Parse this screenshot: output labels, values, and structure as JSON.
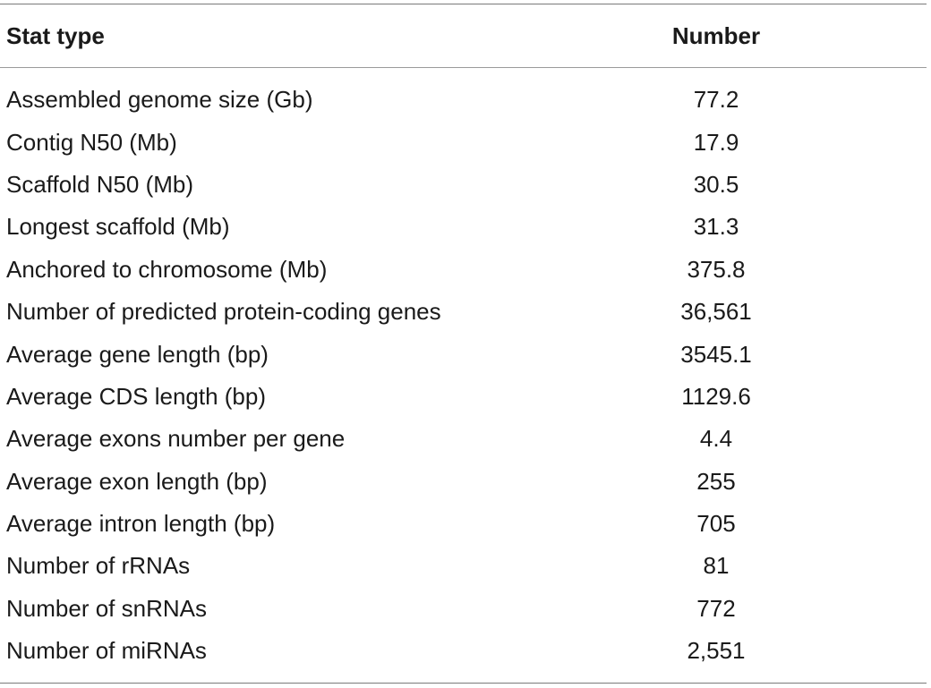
{
  "table": {
    "headers": {
      "stat_type": "Stat type",
      "number": "Number"
    },
    "rows": [
      {
        "stat": "Assembled genome size (Gb)",
        "value": "77.2"
      },
      {
        "stat": "Contig N50 (Mb)",
        "value": "17.9"
      },
      {
        "stat": "Scaffold N50 (Mb)",
        "value": "30.5"
      },
      {
        "stat": "Longest scaffold (Mb)",
        "value": "31.3"
      },
      {
        "stat": "Anchored to chromosome (Mb)",
        "value": "375.8"
      },
      {
        "stat": "Number of predicted protein-coding genes",
        "value": "36,561"
      },
      {
        "stat": "Average gene length (bp)",
        "value": "3545.1"
      },
      {
        "stat": "Average CDS length (bp)",
        "value": "1129.6"
      },
      {
        "stat": "Average exons number per gene",
        "value": "4.4"
      },
      {
        "stat": "Average exon length (bp)",
        "value": "255"
      },
      {
        "stat": "Average intron length (bp)",
        "value": "705"
      },
      {
        "stat": "Number of rRNAs",
        "value": "81"
      },
      {
        "stat": "Number of snRNAs",
        "value": "772"
      },
      {
        "stat": "Number of miRNAs",
        "value": "2,551"
      }
    ]
  }
}
